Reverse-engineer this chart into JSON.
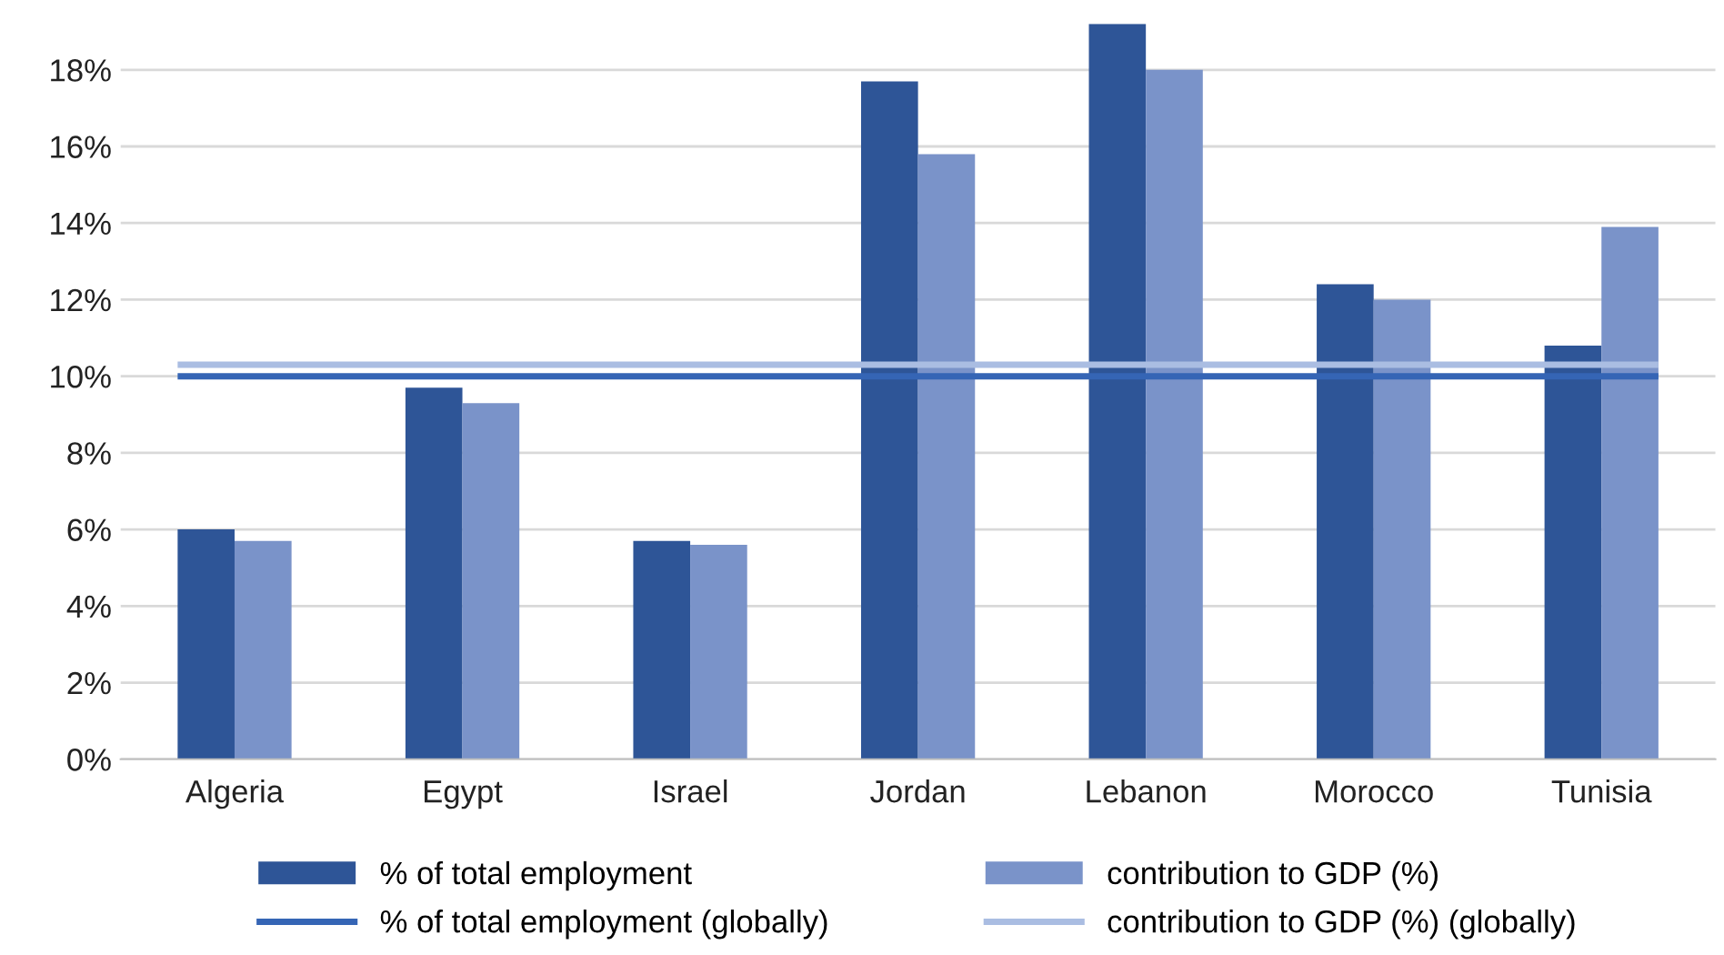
{
  "chart_data": {
    "type": "bar",
    "categories": [
      "Algeria",
      "Egypt",
      "Israel",
      "Jordan",
      "Lebanon",
      "Morocco",
      "Tunisia"
    ],
    "series": [
      {
        "name": "% of total employment",
        "color": "#2e5597",
        "values": [
          6.0,
          9.7,
          5.7,
          17.7,
          19.2,
          12.4,
          10.8
        ]
      },
      {
        "name": "contribution to GDP (%)",
        "color": "#7a93c9",
        "values": [
          5.7,
          9.3,
          5.6,
          15.8,
          18.0,
          12.0,
          13.9
        ]
      }
    ],
    "ref_lines": [
      {
        "axis": "y",
        "value": 10.0,
        "label": "% of total employment (globally)",
        "color": "#3565b5"
      },
      {
        "axis": "y",
        "value": 10.3,
        "label": "contribution to GDP (%) (globally)",
        "color": "#aabde2"
      }
    ],
    "ylim": [
      0,
      19.2
    ],
    "yticks": [
      {
        "value": 0,
        "label": "0%"
      },
      {
        "value": 2,
        "label": "2%"
      },
      {
        "value": 4,
        "label": "4%"
      },
      {
        "value": 6,
        "label": "6%"
      },
      {
        "value": 8,
        "label": "8%"
      },
      {
        "value": 10,
        "label": "10%"
      },
      {
        "value": 12,
        "label": "12%"
      },
      {
        "value": 14,
        "label": "14%"
      },
      {
        "value": 16,
        "label": "16%"
      },
      {
        "value": 18,
        "label": "18%"
      }
    ],
    "grid": "y",
    "legend": "bottom"
  }
}
